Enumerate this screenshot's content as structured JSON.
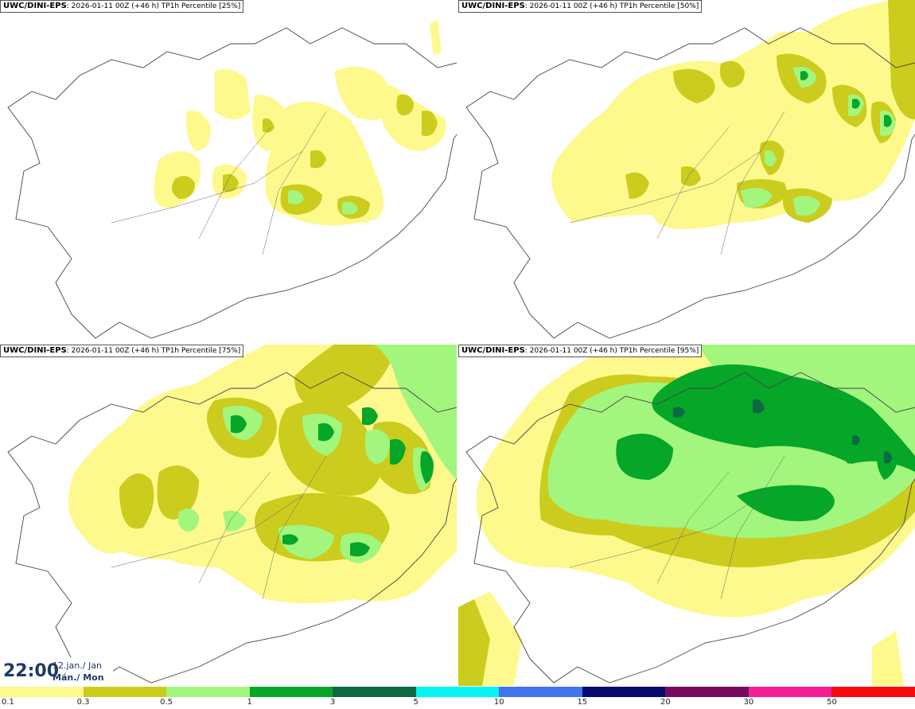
{
  "panels": [
    {
      "model": "UWC/DINI-EPS",
      "info": ": 2026-01-11 00Z (+46 h)",
      "param": "TP1h Percentile [25%]"
    },
    {
      "model": "UWC/DINI-EPS",
      "info": ": 2026-01-11 00Z (+46 h)",
      "param": "TP1h Percentile [50%]"
    },
    {
      "model": "UWC/DINI-EPS",
      "info": ": 2026-01-11 00Z (+46 h)",
      "param": "TP1h Percentile [75%]"
    },
    {
      "model": "UWC/DINI-EPS",
      "info": ": 2026-01-11 00Z (+46 h)",
      "param": "TP1h Percentile [95%]"
    }
  ],
  "valid_time": {
    "time": "22:00",
    "date": "12.jan./ Jan",
    "weekday": "Mán./ Mon"
  },
  "legend": {
    "labels": [
      "0.1",
      "0.3",
      "0.5",
      "1",
      "3",
      "5",
      "10",
      "15",
      "20",
      "30",
      "50"
    ],
    "colors": [
      "#fdf98c",
      "#cbcc1d",
      "#a2f57d",
      "#06a628",
      "#0b6a43",
      "#06f5ee",
      "#3f74ee",
      "#080a70",
      "#770a60",
      "#f61e97",
      "#f80a0a"
    ]
  },
  "colors": {
    "land_outline": "#444444",
    "low": "#fdf98c",
    "mid": "#cbcc1d",
    "light_green": "#a2f57d",
    "green": "#06a628",
    "dark_green": "#0b6a43"
  }
}
